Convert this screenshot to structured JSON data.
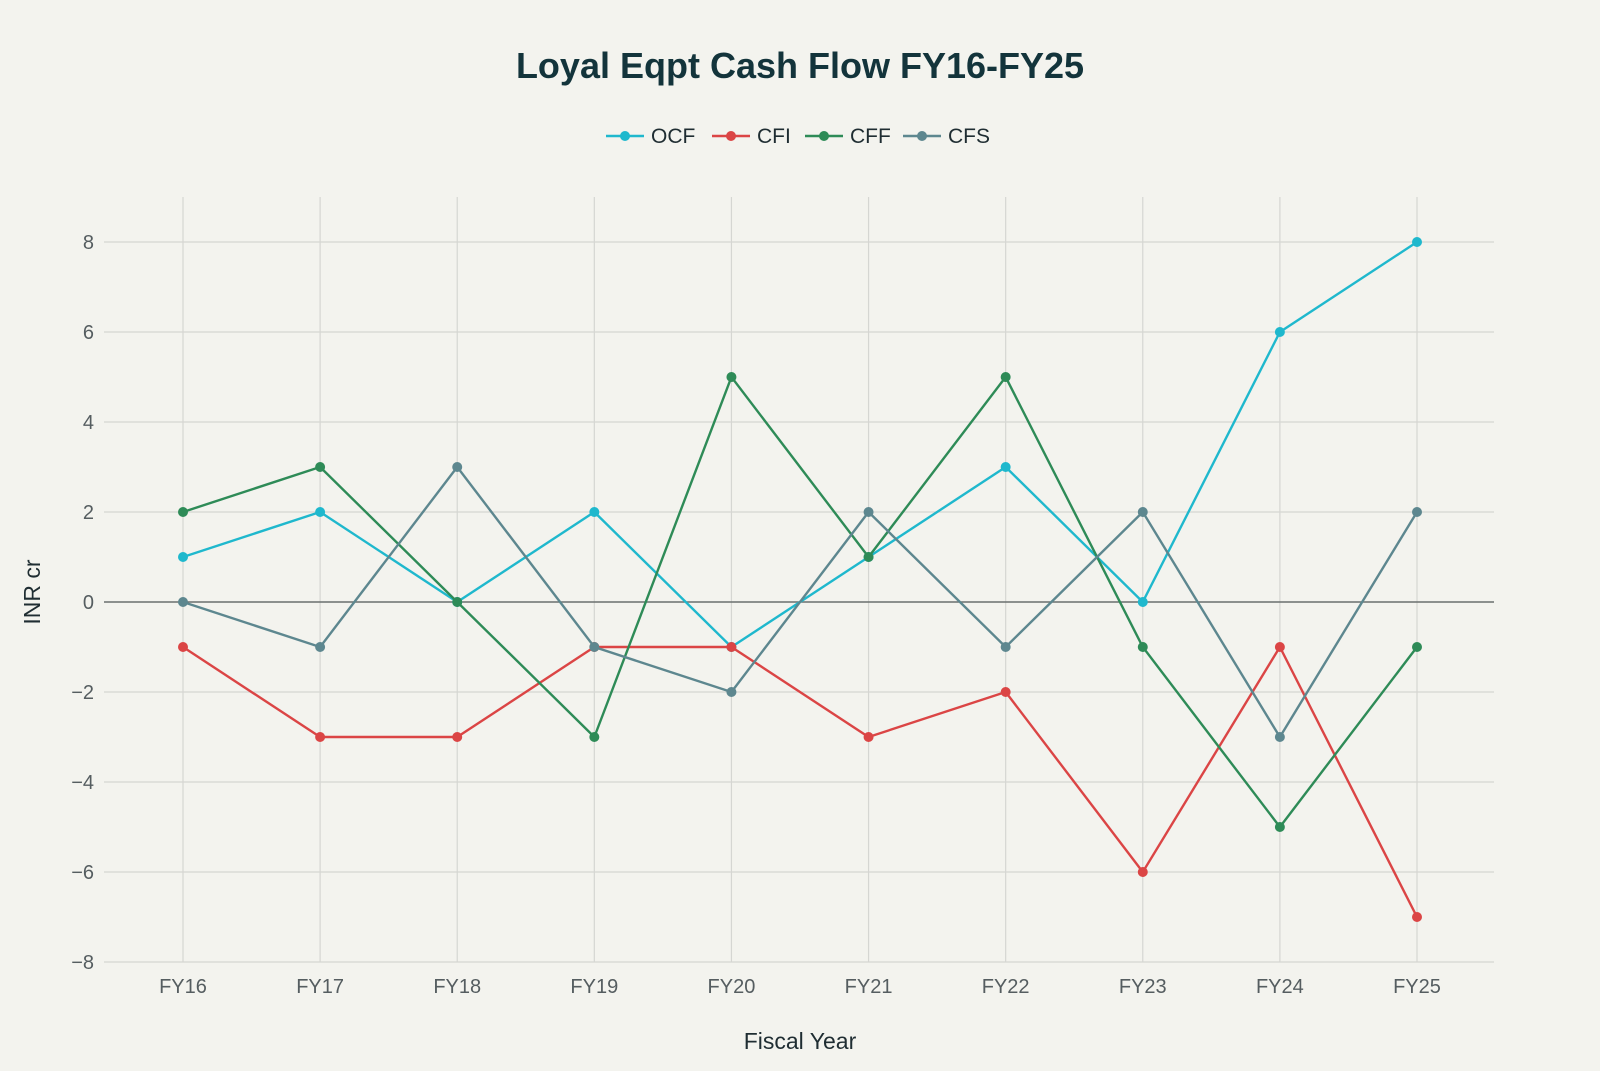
{
  "chart_data": {
    "type": "line",
    "title": "Loyal Eqpt Cash Flow FY16-FY25",
    "xlabel": "Fiscal Year",
    "ylabel": "INR cr",
    "categories": [
      "FY16",
      "FY17",
      "FY18",
      "FY19",
      "FY20",
      "FY21",
      "FY22",
      "FY23",
      "FY24",
      "FY25"
    ],
    "ylim": [
      -8,
      9
    ],
    "yticks": [
      8,
      6,
      4,
      2,
      0,
      -2,
      -4,
      -6,
      -8
    ],
    "ytick_labels": [
      "8",
      "6",
      "4",
      "2",
      "0",
      "−2",
      "−4",
      "−6",
      "−8"
    ],
    "grid": true,
    "legend_position": "top-center",
    "series": [
      {
        "name": "OCF",
        "color": "#1fb8cd",
        "values": [
          1,
          2,
          0,
          2,
          -1,
          1,
          3,
          0,
          6,
          8
        ]
      },
      {
        "name": "CFI",
        "color": "#db4545",
        "values": [
          -1,
          -3,
          -3,
          -1,
          -1,
          -3,
          -2,
          -6,
          -1,
          -7
        ]
      },
      {
        "name": "CFF",
        "color": "#2e8b57",
        "values": [
          2,
          3,
          0,
          -3,
          5,
          1,
          5,
          -1,
          -5,
          -1
        ]
      },
      {
        "name": "CFS",
        "color": "#5d878f",
        "values": [
          0,
          -1,
          3,
          -1,
          -2,
          2,
          -1,
          2,
          -3,
          2
        ]
      }
    ]
  }
}
